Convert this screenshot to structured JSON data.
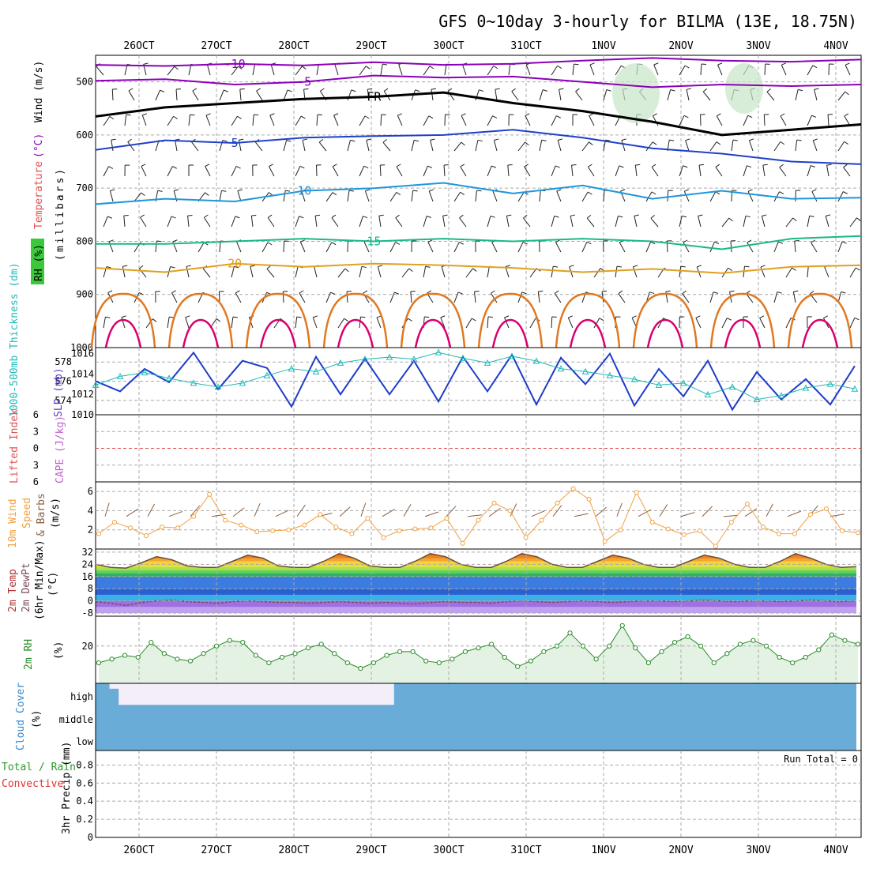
{
  "title": "GFS 0~10day 3-hourly for BILMA (13E, 18.75N)",
  "colors": {
    "grid": "#aaaaaa",
    "t_m10": "#8a00b8",
    "t_m5": "#8a00b8",
    "fr": "#000000",
    "t5": "#1e40c8",
    "t10": "#1e96dc",
    "t15": "#18b88a",
    "t20": "#e0a020",
    "t25": "#e07820",
    "t30": "#d8006e",
    "rh_fill": "#c8e6c8",
    "slp": "#1e3cc8",
    "thick": "#20b8b8",
    "li": "#e05050",
    "wind": "#f0a040",
    "cloud": "#6aacd8",
    "cloud_clear": "#f4eef8"
  },
  "chart_data": [
    {
      "type": "line",
      "name": "upper-air",
      "x_ticks": [
        "26OCT",
        "27OCT",
        "28OCT",
        "29OCT",
        "30OCT",
        "31OCT",
        "1NOV",
        "2NOV",
        "3NOV",
        "4NOV"
      ],
      "ylabel": "Wind (m/s)",
      "ylabel_parts": [
        "RH (%)",
        "Temperature",
        "(°C)",
        "Wind (m/s)"
      ],
      "ylabel2": "(millibars)",
      "y_ticks": [
        500,
        600,
        700,
        800,
        900,
        1000
      ],
      "ylim": [
        450,
        1000
      ],
      "contour_labels": [
        "-10",
        "-5",
        "FR",
        "5",
        "10",
        "15",
        "20"
      ],
      "series": [
        {
          "name": "-10",
          "values": [
            468,
            470,
            466,
            469,
            463,
            468,
            466,
            460,
            455,
            460,
            462,
            458
          ]
        },
        {
          "name": "-5",
          "values": [
            498,
            495,
            505,
            500,
            488,
            492,
            490,
            500,
            510,
            505,
            508,
            505
          ]
        },
        {
          "name": "FR",
          "values": [
            565,
            548,
            540,
            532,
            528,
            520,
            540,
            555,
            575,
            600,
            590,
            580
          ]
        },
        {
          "name": "5",
          "values": [
            628,
            610,
            615,
            605,
            602,
            600,
            590,
            605,
            625,
            635,
            650,
            655
          ]
        },
        {
          "name": "10",
          "values": [
            730,
            720,
            725,
            705,
            700,
            690,
            710,
            695,
            720,
            705,
            720,
            718
          ]
        },
        {
          "name": "15",
          "values": [
            805,
            805,
            800,
            795,
            800,
            795,
            800,
            795,
            800,
            815,
            795,
            790
          ]
        },
        {
          "name": "20",
          "values": [
            850,
            858,
            842,
            848,
            842,
            845,
            850,
            858,
            852,
            860,
            848,
            845
          ]
        }
      ]
    },
    {
      "type": "line",
      "name": "slp-thickness",
      "ylabel": "1000-500mb Thickness (dm)",
      "ylabel2": "SLP (mb)",
      "y_ticks": [
        574,
        576,
        578
      ],
      "y2_ticks": [
        1010,
        1012,
        1014,
        1016
      ],
      "series": [
        {
          "name": "SLP",
          "values": [
            1013.3,
            1012.3,
            1014.5,
            1013.2,
            1016.1,
            1012.5,
            1015.3,
            1014.6,
            1010.8,
            1015.7,
            1012.0,
            1015.5,
            1012.0,
            1015.3,
            1011.3,
            1015.7,
            1012.3,
            1015.9,
            1011.0,
            1015.6,
            1013.0,
            1016.0,
            1010.9,
            1014.5,
            1011.8,
            1015.3,
            1010.5,
            1014.2,
            1011.5,
            1013.5,
            1011.0,
            1014.8
          ]
        },
        {
          "name": "Thickness",
          "values": [
            575.6,
            576.5,
            576.9,
            576.3,
            575.8,
            575.4,
            575.8,
            576.6,
            577.3,
            577.0,
            577.9,
            578.3,
            578.5,
            578.3,
            579.0,
            578.4,
            577.9,
            578.6,
            578.1,
            577.3,
            577.0,
            576.6,
            576.2,
            575.6,
            575.8,
            574.6,
            575.4,
            574.1,
            574.5,
            575.3,
            575.7,
            575.2
          ]
        }
      ]
    },
    {
      "type": "line",
      "name": "li-cape",
      "ylabel": "Lifted Index",
      "ylabel2": "CAPE (J/kg)",
      "y_ticks": [
        6,
        3,
        0,
        -3,
        -6
      ],
      "series": []
    },
    {
      "type": "line",
      "name": "wind10m",
      "ylabel": "10m Wind Speed",
      "ylabel_parts": [
        "10m Wind",
        "Speed",
        "& Barbs",
        "(m/s)"
      ],
      "y_ticks": [
        2,
        4,
        6
      ],
      "ylim": [
        0,
        7
      ],
      "series": [
        {
          "name": "Speed",
          "values": [
            1.6,
            2.8,
            2.2,
            1.4,
            2.3,
            2.2,
            3.4,
            5.7,
            3.0,
            2.5,
            1.8,
            1.9,
            2.0,
            2.5,
            3.6,
            2.3,
            1.6,
            3.2,
            1.2,
            1.9,
            2.1,
            2.2,
            3.2,
            0.6,
            3.0,
            4.8,
            4.0,
            1.2,
            3.0,
            4.8,
            6.3,
            5.2,
            0.8,
            2.0,
            5.9,
            2.8,
            2.1,
            1.5,
            1.9,
            0.3,
            2.8,
            4.7,
            2.3,
            1.6,
            1.6,
            3.6,
            4.2,
            1.9,
            1.7
          ]
        }
      ]
    },
    {
      "type": "area",
      "name": "temp2m",
      "ylabel": "2m Temp",
      "ylabel_parts": [
        "2m Temp",
        "2m DewPt",
        "(6hr Min/Max)",
        "(°C)"
      ],
      "y_ticks": [
        32,
        24,
        16,
        8,
        0,
        -8
      ],
      "series": [
        {
          "name": "Temp",
          "values": [
            24,
            22,
            21.5,
            25,
            29,
            27,
            23,
            22,
            22,
            26,
            30,
            28,
            23,
            22,
            22,
            26,
            31,
            28,
            23,
            22,
            22,
            26,
            31,
            29,
            24,
            22,
            22,
            26,
            31,
            29,
            24,
            22,
            22,
            26,
            30,
            28,
            24,
            22,
            22,
            26,
            30,
            28,
            24,
            22,
            22,
            26,
            31,
            28,
            24,
            22,
            22.5
          ]
        },
        {
          "name": "DewPt",
          "values": [
            -0.5,
            -1.5,
            -3,
            -1,
            0,
            0.5,
            -0.5,
            -1,
            -1.5,
            -0.5,
            0,
            -0.5,
            -1,
            -1,
            -1.5,
            -1,
            -0.5,
            -1,
            -1.5,
            -1,
            -1.5,
            -2,
            -1,
            -0.5,
            -1,
            -1,
            -1.5,
            -0.5,
            0,
            -0.5,
            -1,
            -0.5,
            0,
            -0.5,
            -1,
            -0.5,
            0,
            0,
            -0.5,
            0,
            0.5,
            0,
            -0.5,
            0,
            0,
            -0.5,
            0,
            0.5,
            0,
            -0.5,
            0
          ]
        }
      ]
    },
    {
      "type": "area",
      "name": "rh2m",
      "ylabel": "2m RH",
      "ylabel2": "(%)",
      "y_ticks": [
        20
      ],
      "ylim": [
        0,
        36
      ],
      "series": [
        {
          "name": "RH",
          "values": [
            11,
            13,
            15,
            14,
            22,
            16,
            13,
            12,
            16,
            20,
            23,
            22,
            15,
            11,
            14,
            16,
            19,
            21,
            16,
            11,
            8,
            11,
            15,
            17,
            17,
            12,
            11,
            13,
            17,
            19,
            21,
            14,
            9,
            12,
            17,
            20,
            27,
            20,
            13,
            20,
            31,
            19,
            11,
            17,
            22,
            25,
            20,
            11,
            16,
            21,
            23,
            20,
            14,
            11,
            14,
            18,
            26,
            23,
            21
          ]
        }
      ]
    },
    {
      "type": "area",
      "name": "cloud",
      "ylabel": "Cloud Cover",
      "ylabel2": "(%)",
      "y_ticks": [
        "high",
        "middle",
        "low"
      ],
      "series": [
        {
          "name": "high",
          "values": [
            100,
            75,
            0,
            0,
            0,
            0,
            0,
            0,
            0,
            0,
            0,
            0,
            0,
            0,
            0,
            0,
            0,
            0,
            0,
            0,
            0,
            0,
            0,
            0,
            0,
            0,
            0,
            0,
            0,
            0,
            0,
            0,
            100,
            100,
            100,
            100,
            100,
            100,
            100,
            100,
            100,
            100,
            100,
            100,
            100,
            100,
            100,
            100,
            100,
            100,
            100,
            100,
            100,
            100,
            100,
            100,
            100,
            100,
            100,
            100,
            100,
            100,
            100,
            100,
            100,
            100,
            100,
            100,
            100,
            100,
            100,
            100,
            100,
            100,
            100,
            100,
            100,
            100,
            100,
            100,
            100,
            100,
            100
          ]
        }
      ]
    },
    {
      "type": "bar",
      "name": "precip",
      "ylabel": "3hr Precip (mm)",
      "ylabel_parts": [
        "Total / Rain",
        "Convective",
        "3hr Precip (mm)"
      ],
      "y_ticks": [
        0,
        0.2,
        0.4,
        0.6,
        0.8
      ],
      "ylim": [
        0,
        0.96
      ],
      "annotation": "Run Total = 0",
      "x_ticks": [
        "26OCT",
        "27OCT",
        "28OCT",
        "29OCT",
        "30OCT",
        "31OCT",
        "1NOV",
        "2NOV",
        "3NOV",
        "4NOV"
      ],
      "series": []
    }
  ]
}
